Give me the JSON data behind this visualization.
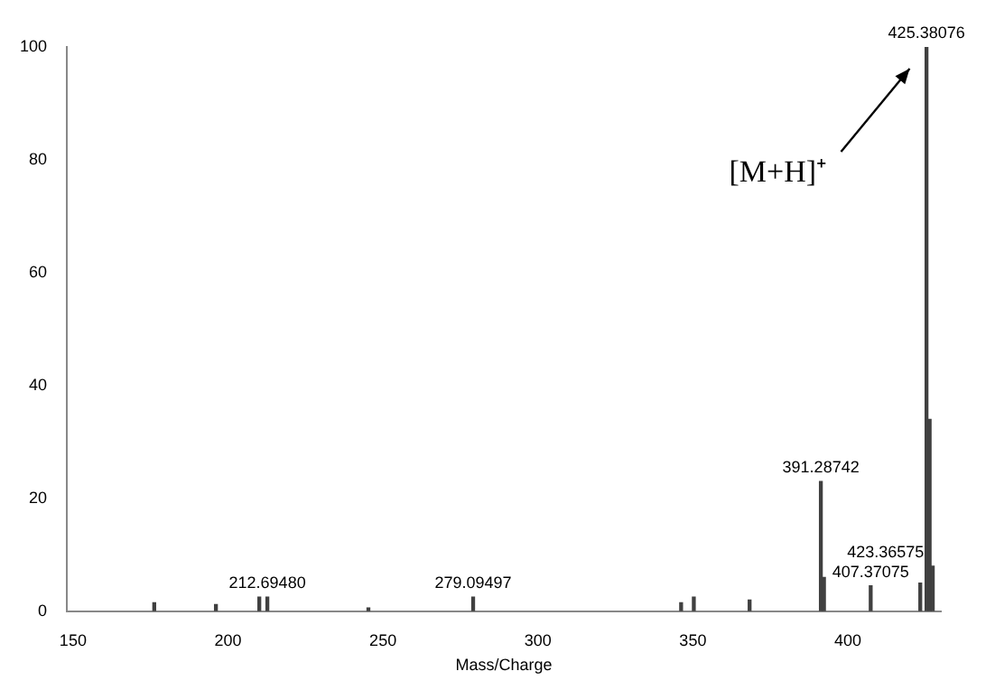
{
  "chart_data": {
    "type": "bar",
    "xlabel": "Mass/Charge",
    "x": [
      176.2,
      196.1,
      210.1,
      212.6948,
      245.3,
      279.09497,
      346.2,
      350.3,
      368.3,
      391.28742,
      392.3,
      407.37075,
      423.36575,
      425.38076,
      426.4,
      427.4
    ],
    "values": [
      1.5,
      1.2,
      2.5,
      2.5,
      0.6,
      2.5,
      1.5,
      2.5,
      2,
      23,
      6,
      4.5,
      5,
      100,
      34,
      8
    ],
    "color": "#404040",
    "xlim": [
      148,
      430
    ],
    "xticks": [
      150,
      200,
      250,
      300,
      350,
      400
    ],
    "ylim": [
      0,
      100
    ],
    "yticks": [
      0,
      20,
      40,
      60,
      80,
      100
    ],
    "grid": false,
    "legend": false,
    "annotations": [
      "[M+H]⁺",
      {
        "text": "212.69480",
        "x": 212.6948,
        "y": 2.5
      },
      {
        "text": "279.09497",
        "x": 279.09497,
        "y": 2.5
      },
      {
        "text": "391.28742",
        "x": 391.28742,
        "y": 23
      },
      {
        "text": "407.37075",
        "x": 407.37075,
        "y": 4.5
      },
      {
        "text": "423.36575",
        "x": 423.36575,
        "y": 5
      },
      {
        "text": "425.38076",
        "x": 425.38076,
        "y": 100
      }
    ]
  }
}
